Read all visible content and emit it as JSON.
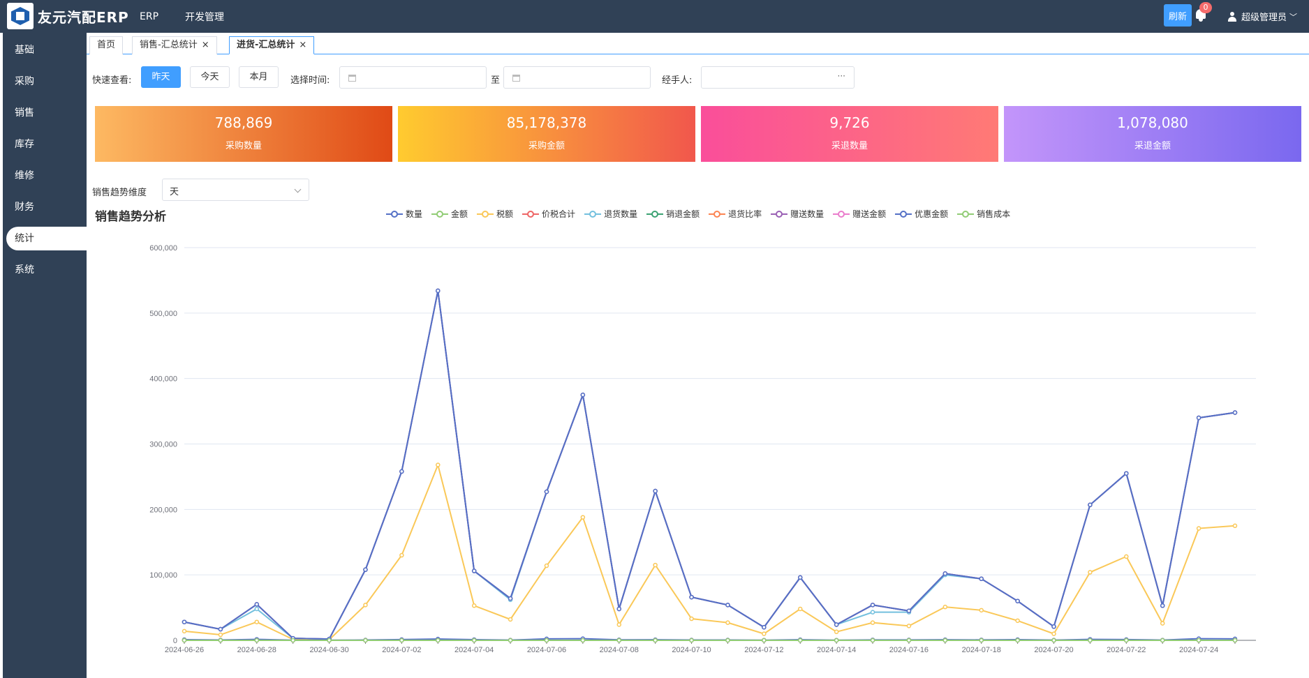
{
  "app": {
    "title": "友元汽配ERP"
  },
  "topnav": [
    {
      "label": "ERP"
    },
    {
      "label": "开发管理"
    }
  ],
  "header": {
    "refresh_label": "刷新",
    "notification_count": "0",
    "user_label": "超级管理员"
  },
  "sidebar": {
    "items": [
      {
        "label": "基础"
      },
      {
        "label": "采购"
      },
      {
        "label": "销售"
      },
      {
        "label": "库存"
      },
      {
        "label": "维修"
      },
      {
        "label": "财务"
      },
      {
        "label": "统计"
      },
      {
        "label": "系统"
      }
    ],
    "active_index": 6
  },
  "tabs": [
    {
      "label": "首页",
      "closable": false
    },
    {
      "label": "销售-汇总统计",
      "closable": true
    },
    {
      "label": "进货-汇总统计",
      "closable": true,
      "active": true
    }
  ],
  "filters": {
    "quick_label": "快速查看:",
    "quick_buttons": [
      {
        "label": "昨天",
        "active": true
      },
      {
        "label": "今天"
      },
      {
        "label": "本月"
      }
    ],
    "time_label": "选择时间:",
    "to_label": "至",
    "handler_label": "经手人:",
    "handler_dots": "···"
  },
  "cards": [
    {
      "value": "788,869",
      "label": "采购数量",
      "from": "#fdb962",
      "to": "#e04a16"
    },
    {
      "value": "85,178,378",
      "label": "采购金额",
      "from": "#ffcb2f",
      "to": "#f1574c"
    },
    {
      "value": "9,726",
      "label": "采退数量",
      "from": "#fa4e9a",
      "to": "#ff7a75"
    },
    {
      "value": "1,078,080",
      "label": "采退金额",
      "from": "#c395fa",
      "to": "#7a68ef"
    }
  ],
  "trend": {
    "label": "销售趋势维度",
    "selected": "天"
  },
  "chart_data": {
    "type": "line",
    "title": "销售趋势分析",
    "x": [
      "2024-06-26",
      "2024-06-27",
      "2024-06-28",
      "2024-06-29",
      "2024-06-30",
      "2024-07-01",
      "2024-07-02",
      "2024-07-03",
      "2024-07-04",
      "2024-07-05",
      "2024-07-06",
      "2024-07-07",
      "2024-07-08",
      "2024-07-09",
      "2024-07-10",
      "2024-07-11",
      "2024-07-12",
      "2024-07-13",
      "2024-07-14",
      "2024-07-15",
      "2024-07-16",
      "2024-07-17",
      "2024-07-18",
      "2024-07-19",
      "2024-07-20",
      "2024-07-21",
      "2024-07-22",
      "2024-07-23",
      "2024-07-24",
      "2024-07-25"
    ],
    "x_tick_labels": [
      "2024-06-26",
      "2024-06-28",
      "2024-06-30",
      "2024-07-02",
      "2024-07-04",
      "2024-07-06",
      "2024-07-08",
      "2024-07-10",
      "2024-07-12",
      "2024-07-14",
      "2024-07-16",
      "2024-07-18",
      "2024-07-20",
      "2024-07-22",
      "2024-07-24"
    ],
    "y_ticks": [
      "0",
      "100,000",
      "200,000",
      "300,000",
      "400,000",
      "500,000",
      "600,000"
    ],
    "ylim": [
      0,
      600000
    ],
    "grid": true,
    "legend_position": "top",
    "series": [
      {
        "name": "数量",
        "color": "#5470c6",
        "values": [
          1000,
          500,
          1500,
          300,
          200,
          500,
          1200,
          2000,
          1000,
          400,
          2200,
          2500,
          800,
          900,
          500,
          500,
          300,
          900,
          300,
          700,
          600,
          900,
          700,
          1000,
          400,
          1500,
          1200,
          400,
          2500,
          2200
        ]
      },
      {
        "name": "金额",
        "color": "#91cc75",
        "values": [
          0,
          0,
          0,
          0,
          0,
          0,
          0,
          0,
          0,
          0,
          0,
          0,
          0,
          0,
          0,
          0,
          0,
          0,
          0,
          0,
          0,
          0,
          0,
          0,
          0,
          0,
          0,
          0,
          0,
          0
        ]
      },
      {
        "name": "税额",
        "color": "#fac858",
        "values": [
          14000,
          8500,
          28000,
          1500,
          1000,
          54000,
          130000,
          268000,
          53000,
          32000,
          114000,
          188000,
          24000,
          115000,
          33000,
          27000,
          10000,
          48000,
          13000,
          27000,
          22000,
          51000,
          46000,
          30000,
          10000,
          104000,
          128000,
          26000,
          171000,
          175000
        ]
      },
      {
        "name": "价税合计",
        "color": "#ee6666",
        "values": [
          28000,
          17000,
          55000,
          3000,
          2000,
          108000,
          258000,
          534000,
          106000,
          64000,
          227000,
          375000,
          48000,
          228000,
          66000,
          54000,
          20000,
          96000,
          24000,
          54000,
          45000,
          102000,
          94000,
          60000,
          21000,
          207000,
          255000,
          53000,
          340000,
          348000
        ]
      },
      {
        "name": "退货数量",
        "color": "#73c0de",
        "values": [
          28000,
          17000,
          48000,
          3000,
          2000,
          108000,
          258000,
          534000,
          106000,
          62000,
          227000,
          375000,
          48000,
          228000,
          66000,
          54000,
          20000,
          96000,
          24000,
          43000,
          43000,
          100000,
          94000,
          60000,
          21000,
          207000,
          255000,
          53000,
          340000,
          348000
        ]
      },
      {
        "name": "销退金额",
        "color": "#3ba272",
        "values": [
          0,
          0,
          0,
          0,
          0,
          0,
          0,
          0,
          0,
          0,
          0,
          0,
          0,
          0,
          0,
          0,
          0,
          0,
          0,
          0,
          0,
          0,
          0,
          0,
          0,
          0,
          0,
          0,
          0,
          0
        ]
      },
      {
        "name": "退货比率",
        "color": "#fc8452",
        "values": [
          0,
          0,
          0,
          0,
          0,
          0,
          0,
          0,
          0,
          0,
          0,
          0,
          0,
          0,
          0,
          0,
          0,
          0,
          0,
          0,
          0,
          0,
          0,
          0,
          0,
          0,
          0,
          0,
          0,
          0
        ]
      },
      {
        "name": "赠送数量",
        "color": "#9a60b4",
        "values": [
          28000,
          17000,
          55000,
          3000,
          2000,
          108000,
          258000,
          534000,
          106000,
          64000,
          227000,
          375000,
          48000,
          228000,
          66000,
          54000,
          20000,
          96000,
          24000,
          54000,
          45000,
          102000,
          94000,
          60000,
          21000,
          207000,
          255000,
          53000,
          340000,
          348000
        ]
      },
      {
        "name": "赠送金额",
        "color": "#ea7ccc",
        "values": [
          0,
          0,
          0,
          0,
          0,
          0,
          0,
          0,
          0,
          0,
          0,
          0,
          0,
          0,
          0,
          0,
          0,
          0,
          0,
          0,
          0,
          0,
          0,
          0,
          0,
          0,
          0,
          0,
          0,
          0
        ]
      },
      {
        "name": "优惠金额",
        "color": "#5470c6",
        "values": [
          28000,
          17000,
          55000,
          3000,
          2000,
          108000,
          258000,
          534000,
          106000,
          64000,
          227000,
          375000,
          48000,
          228000,
          66000,
          54000,
          20000,
          96000,
          24000,
          54000,
          45000,
          102000,
          94000,
          60000,
          21000,
          207000,
          255000,
          53000,
          340000,
          348000
        ]
      },
      {
        "name": "销售成本",
        "color": "#91cc75",
        "values": [
          0,
          0,
          0,
          0,
          0,
          0,
          0,
          0,
          0,
          0,
          0,
          0,
          0,
          0,
          0,
          0,
          0,
          0,
          0,
          0,
          0,
          0,
          0,
          0,
          0,
          0,
          0,
          0,
          0,
          0
        ]
      }
    ]
  }
}
